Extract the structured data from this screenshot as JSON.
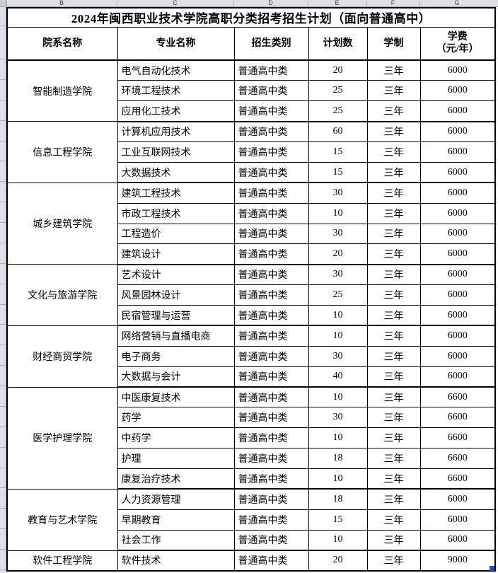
{
  "sheet": {
    "column_letters": [
      "B",
      "C",
      "D",
      "E",
      "F",
      "G"
    ],
    "colors": {
      "stripe": "#daeef3",
      "strip_bg": "#dde0e4",
      "fill_handle": "#2e4da7",
      "grid_line": "#000000"
    }
  },
  "table": {
    "title": "2024年闽西职业技术学院高职分类招考招生计划（面向普通高中）",
    "headers": [
      "院系名称",
      "专业名称",
      "招生类别",
      "计划数",
      "学制",
      "学费\n（元/年）"
    ],
    "sections": [
      {
        "college": "智能制造学院",
        "majors": [
          {
            "name": "电气自动化技术",
            "category": "普通高中类",
            "plan": 20,
            "duration": "三年",
            "tuition": 6000
          },
          {
            "name": "环境工程技术",
            "category": "普通高中类",
            "plan": 25,
            "duration": "三年",
            "tuition": 6000
          },
          {
            "name": "应用化工技术",
            "category": "普通高中类",
            "plan": 25,
            "duration": "三年",
            "tuition": 6000
          }
        ]
      },
      {
        "college": "信息工程学院",
        "majors": [
          {
            "name": "计算机应用技术",
            "category": "普通高中类",
            "plan": 60,
            "duration": "三年",
            "tuition": 6000
          },
          {
            "name": "工业互联网技术",
            "category": "普通高中类",
            "plan": 15,
            "duration": "三年",
            "tuition": 6000
          },
          {
            "name": "大数据技术",
            "category": "普通高中类",
            "plan": 15,
            "duration": "三年",
            "tuition": 6000
          }
        ]
      },
      {
        "college": "城乡建筑学院",
        "majors": [
          {
            "name": "建筑工程技术",
            "category": "普通高中类",
            "plan": 30,
            "duration": "三年",
            "tuition": 6000
          },
          {
            "name": "市政工程技术",
            "category": "普通高中类",
            "plan": 10,
            "duration": "三年",
            "tuition": 6000
          },
          {
            "name": "工程造价",
            "category": "普通高中类",
            "plan": 30,
            "duration": "三年",
            "tuition": 6000
          },
          {
            "name": "建筑设计",
            "category": "普通高中类",
            "plan": 20,
            "duration": "三年",
            "tuition": 6000
          }
        ]
      },
      {
        "college": "文化与旅游学院",
        "majors": [
          {
            "name": "艺术设计",
            "category": "普通高中类",
            "plan": 30,
            "duration": "三年",
            "tuition": 6000
          },
          {
            "name": "风景园林设计",
            "category": "普通高中类",
            "plan": 25,
            "duration": "三年",
            "tuition": 6000
          },
          {
            "name": "民宿管理与运营",
            "category": "普通高中类",
            "plan": 10,
            "duration": "三年",
            "tuition": 6000
          }
        ]
      },
      {
        "college": "财经商贸学院",
        "majors": [
          {
            "name": "网络营销与直播电商",
            "category": "普通高中类",
            "plan": 10,
            "duration": "三年",
            "tuition": 6000
          },
          {
            "name": "电子商务",
            "category": "普通高中类",
            "plan": 30,
            "duration": "三年",
            "tuition": 6000
          },
          {
            "name": "大数据与会计",
            "category": "普通高中类",
            "plan": 40,
            "duration": "三年",
            "tuition": 6000
          }
        ]
      },
      {
        "college": "医学护理学院",
        "majors": [
          {
            "name": "中医康复技术",
            "category": "普通高中类",
            "plan": 10,
            "duration": "三年",
            "tuition": 6600
          },
          {
            "name": "药学",
            "category": "普通高中类",
            "plan": 30,
            "duration": "三年",
            "tuition": 6600
          },
          {
            "name": "中药学",
            "category": "普通高中类",
            "plan": 10,
            "duration": "三年",
            "tuition": 6600
          },
          {
            "name": "护理",
            "category": "普通高中类",
            "plan": 18,
            "duration": "三年",
            "tuition": 6600
          },
          {
            "name": "康复治疗技术",
            "category": "普通高中类",
            "plan": 10,
            "duration": "三年",
            "tuition": 6600
          }
        ]
      },
      {
        "college": "教育与艺术学院",
        "majors": [
          {
            "name": "人力资源管理",
            "category": "普通高中类",
            "plan": 18,
            "duration": "三年",
            "tuition": 6000
          },
          {
            "name": "早期教育",
            "category": "普通高中类",
            "plan": 15,
            "duration": "三年",
            "tuition": 6000
          },
          {
            "name": "社会工作",
            "category": "普通高中类",
            "plan": 10,
            "duration": "三年",
            "tuition": 6000
          }
        ]
      },
      {
        "college": "软件工程学院",
        "majors": [
          {
            "name": "软件技术",
            "category": "普通高中类",
            "plan": 20,
            "duration": "三年",
            "tuition": 9000
          }
        ]
      }
    ]
  }
}
